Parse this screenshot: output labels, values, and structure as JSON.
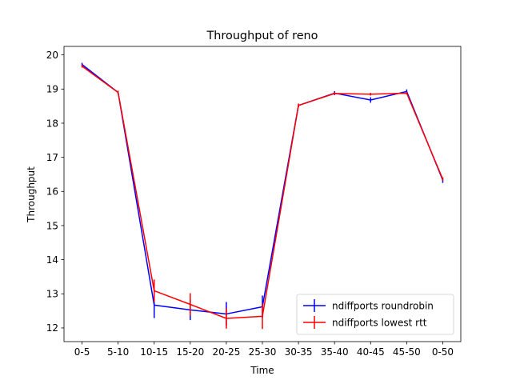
{
  "chart_data": {
    "type": "line",
    "title": "Throughput of reno",
    "xlabel": "Time",
    "ylabel": "Throughput",
    "categories": [
      "0-5",
      "5-10",
      "10-15",
      "15-20",
      "20-25",
      "25-30",
      "30-35",
      "35-40",
      "40-45",
      "45-50",
      "0-50"
    ],
    "ylim": [
      11.6,
      20.25
    ],
    "yticks": [
      12,
      13,
      14,
      15,
      16,
      17,
      18,
      19,
      20
    ],
    "grid": false,
    "legend_position": "lower-right",
    "series": [
      {
        "name": "ndiffports roundrobin",
        "color": "#0000ff",
        "values": [
          19.72,
          18.9,
          12.67,
          12.53,
          12.41,
          12.62,
          18.52,
          18.88,
          18.68,
          18.93,
          16.33
        ],
        "errors": [
          0.05,
          0.05,
          0.38,
          0.3,
          0.35,
          0.33,
          0.05,
          0.06,
          0.08,
          0.06,
          0.08
        ]
      },
      {
        "name": "ndiffports lowest rtt",
        "color": "#ff0000",
        "values": [
          19.67,
          18.9,
          13.09,
          12.69,
          12.28,
          12.34,
          18.52,
          18.87,
          18.85,
          18.88,
          16.36
        ],
        "errors": [
          0.04,
          0.05,
          0.33,
          0.33,
          0.3,
          0.37,
          0.05,
          0.04,
          0.04,
          0.04,
          0.05
        ]
      }
    ]
  }
}
